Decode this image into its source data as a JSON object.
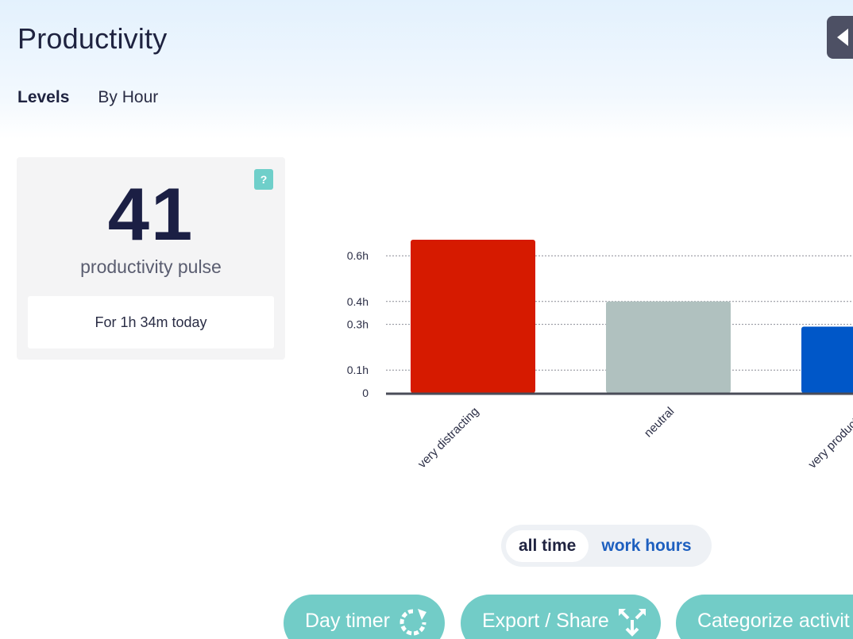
{
  "header": {
    "title": "Productivity"
  },
  "tabs": [
    {
      "label": "Levels",
      "active": true
    },
    {
      "label": "By Hour",
      "active": false
    }
  ],
  "pulse": {
    "value": "41",
    "label": "productivity pulse",
    "subtitle": "For 1h 34m today",
    "help_label": "?"
  },
  "chart_data": {
    "type": "bar",
    "categories": [
      "very distracting",
      "neutral",
      "very productive"
    ],
    "values": [
      0.67,
      0.4,
      0.29
    ],
    "ytick_labels": [
      "0",
      "0.1h",
      "0.3h",
      "0.4h",
      "0.6h"
    ],
    "ytick_values": [
      0,
      0.1,
      0.3,
      0.4,
      0.6
    ],
    "colors": [
      "#d61a00",
      "#b0c1bf",
      "#0057c8"
    ],
    "ylim": [
      0,
      0.7
    ],
    "grid": true
  },
  "range_toggle": {
    "options": [
      {
        "label": "all time",
        "active": true
      },
      {
        "label": "work hours",
        "active": false
      }
    ]
  },
  "actions": [
    {
      "label": "Day timer",
      "icon": "refresh-icon"
    },
    {
      "label": "Export / Share",
      "icon": "export-icon"
    },
    {
      "label": "Categorize activit",
      "icon": ""
    }
  ],
  "colors": {
    "accent_teal": "#72ccc7",
    "link_blue": "#1d5fbf",
    "dark_navy": "#1b1f44"
  }
}
